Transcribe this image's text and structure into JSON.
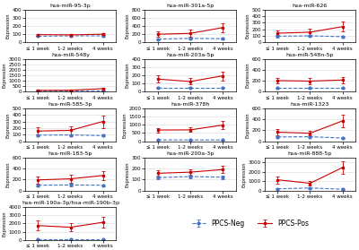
{
  "chart_data": [
    {
      "type": "line",
      "title": "hsa-miR-95-3p",
      "categories": [
        "≤ 1 week",
        "1-2 weeks",
        "4 weeks"
      ],
      "ylabel": "Expression",
      "ylim": [
        0,
        400
      ],
      "yticks": [
        0,
        100,
        200,
        300,
        400
      ],
      "grid": "y",
      "series": [
        {
          "name": "PPCS-Neg",
          "color": "#4472C4",
          "line_style": "dashed",
          "marker": "o",
          "values": [
            75,
            80,
            80
          ],
          "errors": [
            10,
            8,
            8
          ]
        },
        {
          "name": "PPCS-Pos",
          "color": "#CC0000",
          "line_style": "solid",
          "marker": "s",
          "values": [
            95,
            92,
            100
          ],
          "errors": [
            12,
            10,
            10
          ]
        }
      ]
    },
    {
      "type": "line",
      "title": "hsa-miR-301a-5p",
      "categories": [
        "≤ 1 week",
        "1-2 weeks",
        "4 weeks"
      ],
      "ylabel": "Expression",
      "ylim": [
        0,
        800
      ],
      "yticks": [
        0,
        200,
        400,
        600,
        800
      ],
      "grid": "y",
      "series": [
        {
          "name": "PPCS-Neg",
          "color": "#4472C4",
          "line_style": "dashed",
          "marker": "o",
          "values": [
            80,
            100,
            90
          ],
          "errors": [
            25,
            20,
            20
          ]
        },
        {
          "name": "PPCS-Pos",
          "color": "#CC0000",
          "line_style": "solid",
          "marker": "s",
          "values": [
            200,
            220,
            360
          ],
          "errors": [
            70,
            90,
            110
          ]
        }
      ]
    },
    {
      "type": "line",
      "title": "hsa-miR-626",
      "categories": [
        "≤ 1 week",
        "1-2 weeks",
        "4 weeks"
      ],
      "ylabel": "Expression",
      "ylim": [
        0,
        500
      ],
      "yticks": [
        0,
        100,
        200,
        300,
        400,
        500
      ],
      "grid": "y",
      "series": [
        {
          "name": "PPCS-Neg",
          "color": "#4472C4",
          "line_style": "dashed",
          "marker": "o",
          "values": [
            95,
            100,
            88
          ],
          "errors": [
            20,
            18,
            15
          ]
        },
        {
          "name": "PPCS-Pos",
          "color": "#CC0000",
          "line_style": "solid",
          "marker": "s",
          "values": [
            140,
            155,
            240
          ],
          "errors": [
            45,
            55,
            75
          ]
        }
      ]
    },
    {
      "type": "line",
      "title": "hsa-miR-548y",
      "categories": [
        "≤ 1 week",
        "1-2 weeks",
        "4 weeks"
      ],
      "ylabel": "Expression",
      "ylim": [
        0,
        3000
      ],
      "yticks": [
        0,
        500,
        1000,
        1500,
        2000,
        2500,
        3000
      ],
      "grid": "y",
      "series": [
        {
          "name": "PPCS-Neg",
          "color": "#4472C4",
          "line_style": "dashed",
          "marker": "o",
          "values": [
            75,
            72,
            68
          ],
          "errors": [
            18,
            15,
            12
          ]
        },
        {
          "name": "PPCS-Pos",
          "color": "#CC0000",
          "line_style": "solid",
          "marker": "s",
          "values": [
            130,
            145,
            290
          ],
          "errors": [
            45,
            55,
            95
          ]
        }
      ]
    },
    {
      "type": "line",
      "title": "hsa-miR-203a-5p",
      "categories": [
        "≤ 1 week",
        "1-2 weeks",
        "4 weeks"
      ],
      "ylabel": "Expression",
      "ylim": [
        0,
        400
      ],
      "yticks": [
        0,
        100,
        200,
        300,
        400
      ],
      "grid": "y",
      "series": [
        {
          "name": "PPCS-Neg",
          "color": "#4472C4",
          "line_style": "dashed",
          "marker": "o",
          "values": [
            52,
            52,
            52
          ],
          "errors": [
            8,
            8,
            8
          ]
        },
        {
          "name": "PPCS-Pos",
          "color": "#CC0000",
          "line_style": "solid",
          "marker": "s",
          "values": [
            155,
            125,
            195
          ],
          "errors": [
            45,
            38,
            55
          ]
        }
      ]
    },
    {
      "type": "line",
      "title": "hsa-miR-548n-5p",
      "categories": [
        "≤ 1 week",
        "1-2 weeks",
        "4 weeks"
      ],
      "ylabel": "Expression",
      "ylim": [
        0,
        600
      ],
      "yticks": [
        0,
        200,
        400,
        600
      ],
      "grid": "y",
      "series": [
        {
          "name": "PPCS-Neg",
          "color": "#4472C4",
          "line_style": "dashed",
          "marker": "o",
          "values": [
            68,
            68,
            68
          ],
          "errors": [
            12,
            10,
            10
          ]
        },
        {
          "name": "PPCS-Pos",
          "color": "#CC0000",
          "line_style": "solid",
          "marker": "s",
          "values": [
            205,
            195,
            215
          ],
          "errors": [
            55,
            50,
            55
          ]
        }
      ]
    },
    {
      "type": "line",
      "title": "hsa-miR-585-3p",
      "categories": [
        "≤ 1 week",
        "1-2 weeks",
        "4 weeks"
      ],
      "ylabel": "Expression",
      "ylim": [
        0,
        500
      ],
      "yticks": [
        0,
        100,
        200,
        300,
        400,
        500
      ],
      "grid": "y",
      "series": [
        {
          "name": "PPCS-Neg",
          "color": "#4472C4",
          "line_style": "dashed",
          "marker": "o",
          "values": [
            92,
            95,
            85
          ],
          "errors": [
            18,
            15,
            15
          ]
        },
        {
          "name": "PPCS-Pos",
          "color": "#CC0000",
          "line_style": "solid",
          "marker": "s",
          "values": [
            155,
            165,
            300
          ],
          "errors": [
            55,
            65,
            95
          ]
        }
      ]
    },
    {
      "type": "line",
      "title": "hsa-miR-378h",
      "categories": [
        "≤ 1 week",
        "1-2 weeks",
        "4 weeks"
      ],
      "ylabel": "Expression",
      "ylim": [
        0,
        2000
      ],
      "yticks": [
        0,
        500,
        1000,
        1500,
        2000
      ],
      "grid": "y",
      "series": [
        {
          "name": "PPCS-Neg",
          "color": "#4472C4",
          "line_style": "dashed",
          "marker": "o",
          "values": [
            78,
            76,
            73
          ],
          "errors": [
            12,
            10,
            10
          ]
        },
        {
          "name": "PPCS-Pos",
          "color": "#CC0000",
          "line_style": "solid",
          "marker": "s",
          "values": [
            680,
            690,
            980
          ],
          "errors": [
            140,
            140,
            230
          ]
        }
      ]
    },
    {
      "type": "line",
      "title": "hsa-miR-1323",
      "categories": [
        "≤ 1 week",
        "1-2 weeks",
        "4 weeks"
      ],
      "ylabel": "Expression",
      "ylim": [
        0,
        600
      ],
      "yticks": [
        0,
        200,
        400,
        600
      ],
      "grid": "y",
      "series": [
        {
          "name": "PPCS-Neg",
          "color": "#4472C4",
          "line_style": "dashed",
          "marker": "o",
          "values": [
            78,
            82,
            58
          ],
          "errors": [
            18,
            15,
            10
          ]
        },
        {
          "name": "PPCS-Pos",
          "color": "#CC0000",
          "line_style": "solid",
          "marker": "s",
          "values": [
            165,
            145,
            370
          ],
          "errors": [
            55,
            45,
            115
          ]
        }
      ]
    },
    {
      "type": "line",
      "title": "hsa-miR-183-5p",
      "categories": [
        "≤ 1 week",
        "1-2 weeks",
        "4 weeks"
      ],
      "ylabel": "Expression",
      "ylim": [
        0,
        600
      ],
      "yticks": [
        0,
        200,
        400,
        600
      ],
      "grid": "y",
      "series": [
        {
          "name": "PPCS-Neg",
          "color": "#4472C4",
          "line_style": "dashed",
          "marker": "o",
          "values": [
            98,
            103,
            98
          ],
          "errors": [
            22,
            18,
            18
          ]
        },
        {
          "name": "PPCS-Pos",
          "color": "#CC0000",
          "line_style": "solid",
          "marker": "s",
          "values": [
            195,
            215,
            275
          ],
          "errors": [
            65,
            70,
            85
          ]
        }
      ]
    },
    {
      "type": "line",
      "title": "hsa-miR-200a-3p",
      "categories": [
        "≤ 1 week",
        "1-2 weeks",
        "4 weeks"
      ],
      "ylabel": "Expression",
      "ylim": [
        0,
        300
      ],
      "yticks": [
        0,
        100,
        200,
        300
      ],
      "grid": "y",
      "series": [
        {
          "name": "PPCS-Neg",
          "color": "#4472C4",
          "line_style": "dashed",
          "marker": "o",
          "values": [
            118,
            128,
            122
          ],
          "errors": [
            18,
            15,
            15
          ]
        },
        {
          "name": "PPCS-Pos",
          "color": "#CC0000",
          "line_style": "solid",
          "marker": "s",
          "values": [
            158,
            168,
            192
          ],
          "errors": [
            28,
            28,
            32
          ]
        }
      ]
    },
    {
      "type": "line",
      "title": "hsa-miR-888-5p",
      "categories": [
        "≤ 1 week",
        "1-2 weeks",
        "4 weeks"
      ],
      "ylabel": "Expression",
      "ylim": [
        0,
        3500
      ],
      "yticks": [
        0,
        1000,
        2000,
        3000
      ],
      "grid": "y",
      "series": [
        {
          "name": "PPCS-Neg",
          "color": "#4472C4",
          "line_style": "dashed",
          "marker": "o",
          "values": [
            190,
            280,
            145
          ],
          "errors": [
            55,
            75,
            38
          ]
        },
        {
          "name": "PPCS-Pos",
          "color": "#CC0000",
          "line_style": "solid",
          "marker": "s",
          "values": [
            1150,
            780,
            2450
          ],
          "errors": [
            380,
            280,
            670
          ]
        }
      ]
    },
    {
      "type": "line",
      "title": "hsa-miR-190a-3p/hsa-miR-190b-3p",
      "categories": [
        "≤ 1 week",
        "1-2 weeks",
        "4 weeks"
      ],
      "ylabel": "Expression",
      "ylim": [
        0,
        4000
      ],
      "yticks": [
        0,
        1000,
        2000,
        3000,
        4000
      ],
      "grid": "y",
      "series": [
        {
          "name": "PPCS-Neg",
          "color": "#4472C4",
          "line_style": "dashed",
          "marker": "o",
          "values": [
            95,
            95,
            95
          ],
          "errors": [
            28,
            22,
            22
          ]
        },
        {
          "name": "PPCS-Pos",
          "color": "#CC0000",
          "line_style": "solid",
          "marker": "s",
          "values": [
            1750,
            1550,
            2150
          ],
          "errors": [
            580,
            480,
            680
          ]
        }
      ]
    }
  ]
}
